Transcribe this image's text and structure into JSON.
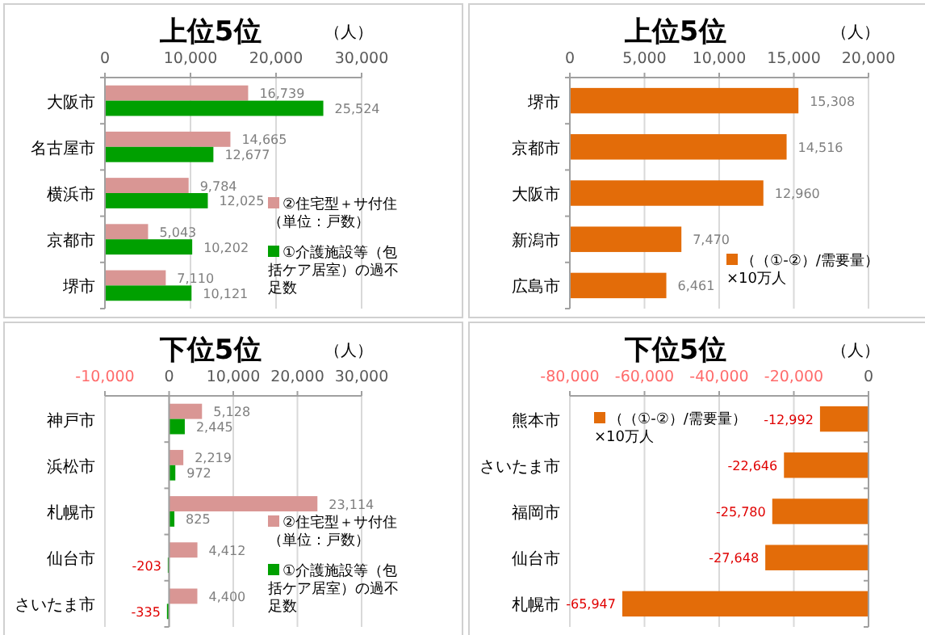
{
  "chart_data": [
    {
      "type": "bar",
      "orientation": "horizontal",
      "title": "上位5位",
      "annotations": [
        "（人）"
      ],
      "categories": [
        "大阪市",
        "名古屋市",
        "横浜市",
        "京都市",
        "堺市"
      ],
      "series": [
        {
          "name": "②住宅型＋サ付住（単位：戸数）",
          "color": "#d99694",
          "values": [
            16739,
            14665,
            9784,
            5043,
            7110
          ],
          "value_labels": [
            "16,739",
            "14,665",
            "9,784",
            "5,043",
            "7,110"
          ]
        },
        {
          "name": "①介護施設等（包括ケア居室）の過不足数",
          "color": "#00a000",
          "values": [
            25524,
            12677,
            12025,
            10202,
            10121
          ],
          "value_labels": [
            "25,524",
            "12,677",
            "12,025",
            "10,202",
            "10,121"
          ]
        }
      ],
      "xlim": [
        0,
        30000
      ],
      "xticks": [
        {
          "value": 0,
          "label": "0"
        },
        {
          "value": 10000,
          "label": "10,000"
        },
        {
          "value": 20000,
          "label": "20,000"
        },
        {
          "value": 30000,
          "label": "30,000"
        }
      ],
      "grid": "x",
      "legend": "right"
    },
    {
      "type": "bar",
      "orientation": "horizontal",
      "title": "上位5位",
      "annotations": [
        "（人）"
      ],
      "categories": [
        "堺市",
        "京都市",
        "大阪市",
        "新潟市",
        "広島市"
      ],
      "series": [
        {
          "name": "（（①-②）/需要量）×10万人",
          "color": "#e36c09",
          "values": [
            15308,
            14516,
            12960,
            7470,
            6461
          ],
          "value_labels": [
            "15,308",
            "14,516",
            "12,960",
            "7,470",
            "6,461"
          ]
        }
      ],
      "xlim": [
        0,
        20000
      ],
      "xticks": [
        {
          "value": 0,
          "label": "0"
        },
        {
          "value": 5000,
          "label": "5,000"
        },
        {
          "value": 10000,
          "label": "10,000"
        },
        {
          "value": 15000,
          "label": "15,000"
        },
        {
          "value": 20000,
          "label": "20,000"
        }
      ],
      "grid": "x",
      "legend": "bottom right"
    },
    {
      "type": "bar",
      "orientation": "horizontal",
      "title": "下位5位",
      "annotations": [
        "（人）"
      ],
      "categories": [
        "神戸市",
        "浜松市",
        "札幌市",
        "仙台市",
        "さいたま市"
      ],
      "series": [
        {
          "name": "②住宅型＋サ付住（単位：戸数）",
          "color": "#d99694",
          "values": [
            5128,
            2219,
            23114,
            4412,
            4400
          ],
          "value_labels": [
            "5,128",
            "2,219",
            "23,114",
            "4,412",
            "4,400"
          ]
        },
        {
          "name": "①介護施設等（包括ケア居室）の過不足数",
          "color": "#00a000",
          "values": [
            2445,
            972,
            825,
            -203,
            -335
          ],
          "value_labels": [
            "2,445",
            "972",
            "825",
            "-203",
            "-335"
          ]
        }
      ],
      "xlim": [
        -10000,
        30000
      ],
      "xticks": [
        {
          "value": -10000,
          "label": "-10,000"
        },
        {
          "value": 0,
          "label": "0"
        },
        {
          "value": 10000,
          "label": "10,000"
        },
        {
          "value": 20000,
          "label": "20,000"
        },
        {
          "value": 30000,
          "label": "30,000"
        }
      ],
      "grid": "x",
      "legend": "right"
    },
    {
      "type": "bar",
      "orientation": "horizontal",
      "title": "下位5位",
      "annotations": [
        "（人）"
      ],
      "categories": [
        "熊本市",
        "さいたま市",
        "福岡市",
        "仙台市",
        "札幌市"
      ],
      "series": [
        {
          "name": "（（①-②）/需要量）×10万人",
          "color": "#e36c09",
          "values": [
            -12992,
            -22646,
            -25780,
            -27648,
            -65947
          ],
          "value_labels": [
            "-12,992",
            "-22,646",
            "-25,780",
            "-27,648",
            "-65,947"
          ]
        }
      ],
      "xlim": [
        -80000,
        0
      ],
      "xticks": [
        {
          "value": -80000,
          "label": "-80,000"
        },
        {
          "value": -60000,
          "label": "-60,000"
        },
        {
          "value": -40000,
          "label": "-40,000"
        },
        {
          "value": -20000,
          "label": "-20,000"
        },
        {
          "value": 0,
          "label": "0"
        }
      ],
      "grid": "x",
      "legend": "top left"
    }
  ]
}
